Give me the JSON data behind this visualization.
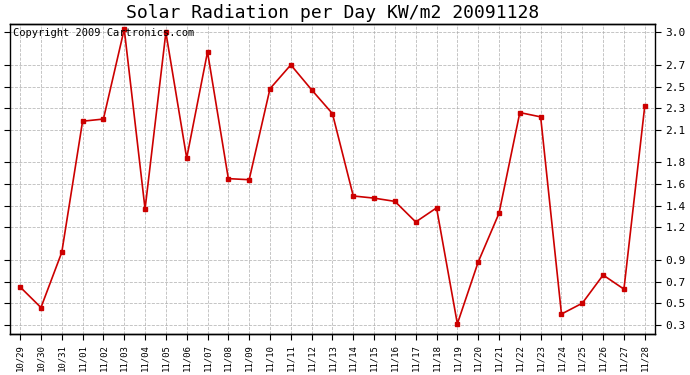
{
  "title": "Solar Radiation per Day KW/m2 20091128",
  "copyright": "Copyright 2009 Cartronics.com",
  "x_labels": [
    "10/29",
    "10/30",
    "10/31",
    "11/01",
    "11/02",
    "11/03",
    "11/04",
    "11/05",
    "11/06",
    "11/07",
    "11/08",
    "11/09",
    "11/10",
    "11/11",
    "11/12",
    "11/13",
    "11/14",
    "11/15",
    "11/16",
    "11/17",
    "11/18",
    "11/19",
    "11/20",
    "11/21",
    "11/22",
    "11/23",
    "11/24",
    "11/25",
    "11/26",
    "11/27",
    "11/28"
  ],
  "y_values": [
    0.65,
    0.46,
    0.97,
    2.18,
    2.2,
    3.03,
    1.37,
    3.0,
    1.84,
    2.82,
    1.65,
    1.64,
    2.48,
    2.7,
    2.47,
    2.25,
    1.49,
    1.47,
    1.44,
    1.25,
    1.38,
    0.31,
    0.88,
    1.33,
    2.26,
    2.22,
    0.4,
    0.5,
    0.76,
    0.63,
    2.32
  ],
  "line_color": "#cc0000",
  "marker": "s",
  "marker_size": 3,
  "ylim": [
    0.22,
    3.08
  ],
  "yticks": [
    0.3,
    0.5,
    0.7,
    0.9,
    1.2,
    1.4,
    1.6,
    1.8,
    2.1,
    2.3,
    2.5,
    2.7,
    3.0
  ],
  "ytick_labels": [
    "0.3",
    "0.5",
    "0.7",
    "0.9",
    "1.2",
    "1.4",
    "1.6",
    "1.8",
    "2.1",
    "2.3",
    "2.5",
    "2.7",
    "3.0"
  ],
  "background_color": "#ffffff",
  "grid_color": "#aaaaaa",
  "title_fontsize": 13,
  "copyright_fontsize": 7.5
}
